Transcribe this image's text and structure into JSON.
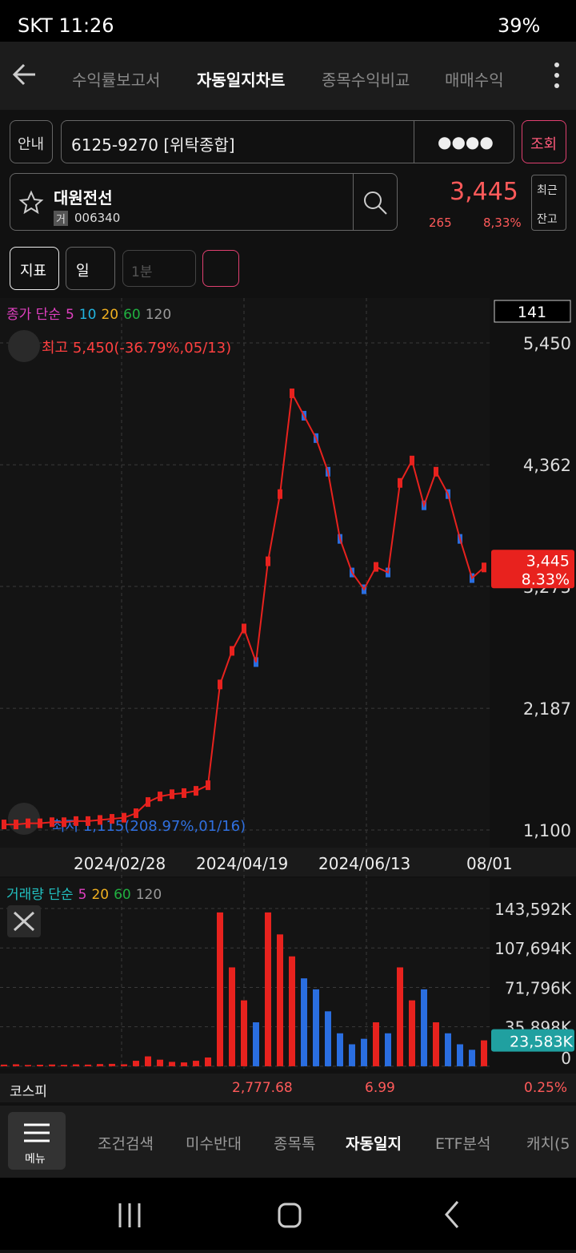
{
  "status_bar": {
    "carrier_time": "SKT 11:26",
    "battery": "39%"
  },
  "tabs": [
    "수익률보고서",
    "자동일지차트",
    "종목수익비교",
    "매매수익"
  ],
  "account": {
    "guide": "안내",
    "number": "6125-9270 [위탁종합]",
    "password": "●●●●",
    "query": "조회"
  },
  "stock": {
    "name": "대원전선",
    "market": "거",
    "code": "006340",
    "price": "3,445",
    "change": "265",
    "change_pct": "8,33%",
    "recent": "최근",
    "balance": "잔고"
  },
  "toolbar": {
    "indicator": "지표",
    "period": "일",
    "interval": "1분"
  },
  "price_chart": {
    "legend": [
      {
        "label": "종가 단순",
        "color": "#e040c0"
      },
      {
        "label": "5",
        "color": "#e040c0"
      },
      {
        "label": "10",
        "color": "#22b4e0"
      },
      {
        "label": "20",
        "color": "#f0b020"
      },
      {
        "label": "60",
        "color": "#20b040"
      },
      {
        "label": "120",
        "color": "#9a9a9a"
      }
    ],
    "count": 141,
    "high_label": "최고 5,450(-36.79%,05/13)",
    "low_label": "최저 1,115(208.97%,01/16)",
    "ylim": [
      943,
      5851
    ],
    "yticks": [
      {
        "value": 5450,
        "label": "5,450"
      },
      {
        "value": 4362,
        "label": "4,362"
      },
      {
        "value": 3275,
        "label": "3,275"
      },
      {
        "value": 2187,
        "label": "2,187"
      },
      {
        "value": 1100,
        "label": "1,100"
      }
    ],
    "x_labels": [
      "2024/02/28",
      "2024/04/19",
      "2024/06/13",
      "08/01"
    ],
    "close": [
      1150,
      1150,
      1160,
      1160,
      1170,
      1170,
      1180,
      1180,
      1190,
      1200,
      1210,
      1250,
      1350,
      1400,
      1420,
      1430,
      1450,
      1500,
      2400,
      2700,
      2900,
      2600,
      3500,
      4100,
      5000,
      4800,
      4600,
      4300,
      3700,
      3400,
      3250,
      3450,
      3400,
      4200,
      4400,
      4000,
      4300,
      4100,
      3700,
      3350,
      3445
    ],
    "color": "#e8221e",
    "last_price": "3,445",
    "last_pct": "8.33%"
  },
  "volume_chart": {
    "legend": [
      {
        "label": "거래량 단순",
        "color": "#22c0c0"
      },
      {
        "label": "5",
        "color": "#e040c0"
      },
      {
        "label": "20",
        "color": "#f0b020"
      },
      {
        "label": "60",
        "color": "#20b040"
      },
      {
        "label": "120",
        "color": "#9a9a9a"
      }
    ],
    "ylim": [
      -2244,
      171270
    ],
    "yticks": [
      {
        "value": 143592,
        "label": "143,592K"
      },
      {
        "value": 107694,
        "label": "107,694K"
      },
      {
        "value": 71796,
        "label": "71,796K"
      },
      {
        "value": 35898,
        "label": "35,898K"
      },
      0
    ],
    "volumes": [
      1500,
      1800,
      1200,
      1400,
      1600,
      1300,
      1700,
      1500,
      2000,
      2200,
      1800,
      5000,
      9000,
      6000,
      4000,
      3500,
      5000,
      8000,
      140000,
      90000,
      60000,
      40000,
      140000,
      120000,
      100000,
      80000,
      70000,
      50000,
      30000,
      20000,
      25000,
      40000,
      30000,
      90000,
      60000,
      70000,
      40000,
      30000,
      20000,
      15000,
      23583
    ],
    "last_label": "23,583K"
  },
  "kospi": {
    "name": "코스피",
    "value": "2,777.68",
    "change": "6.99",
    "pct": "0.25%"
  },
  "bottom_nav": {
    "menu": "메뉴",
    "items": [
      "조건검색",
      "미수반대",
      "종목톡",
      "자동일지",
      "ETF분석",
      "캐치(5"
    ]
  }
}
